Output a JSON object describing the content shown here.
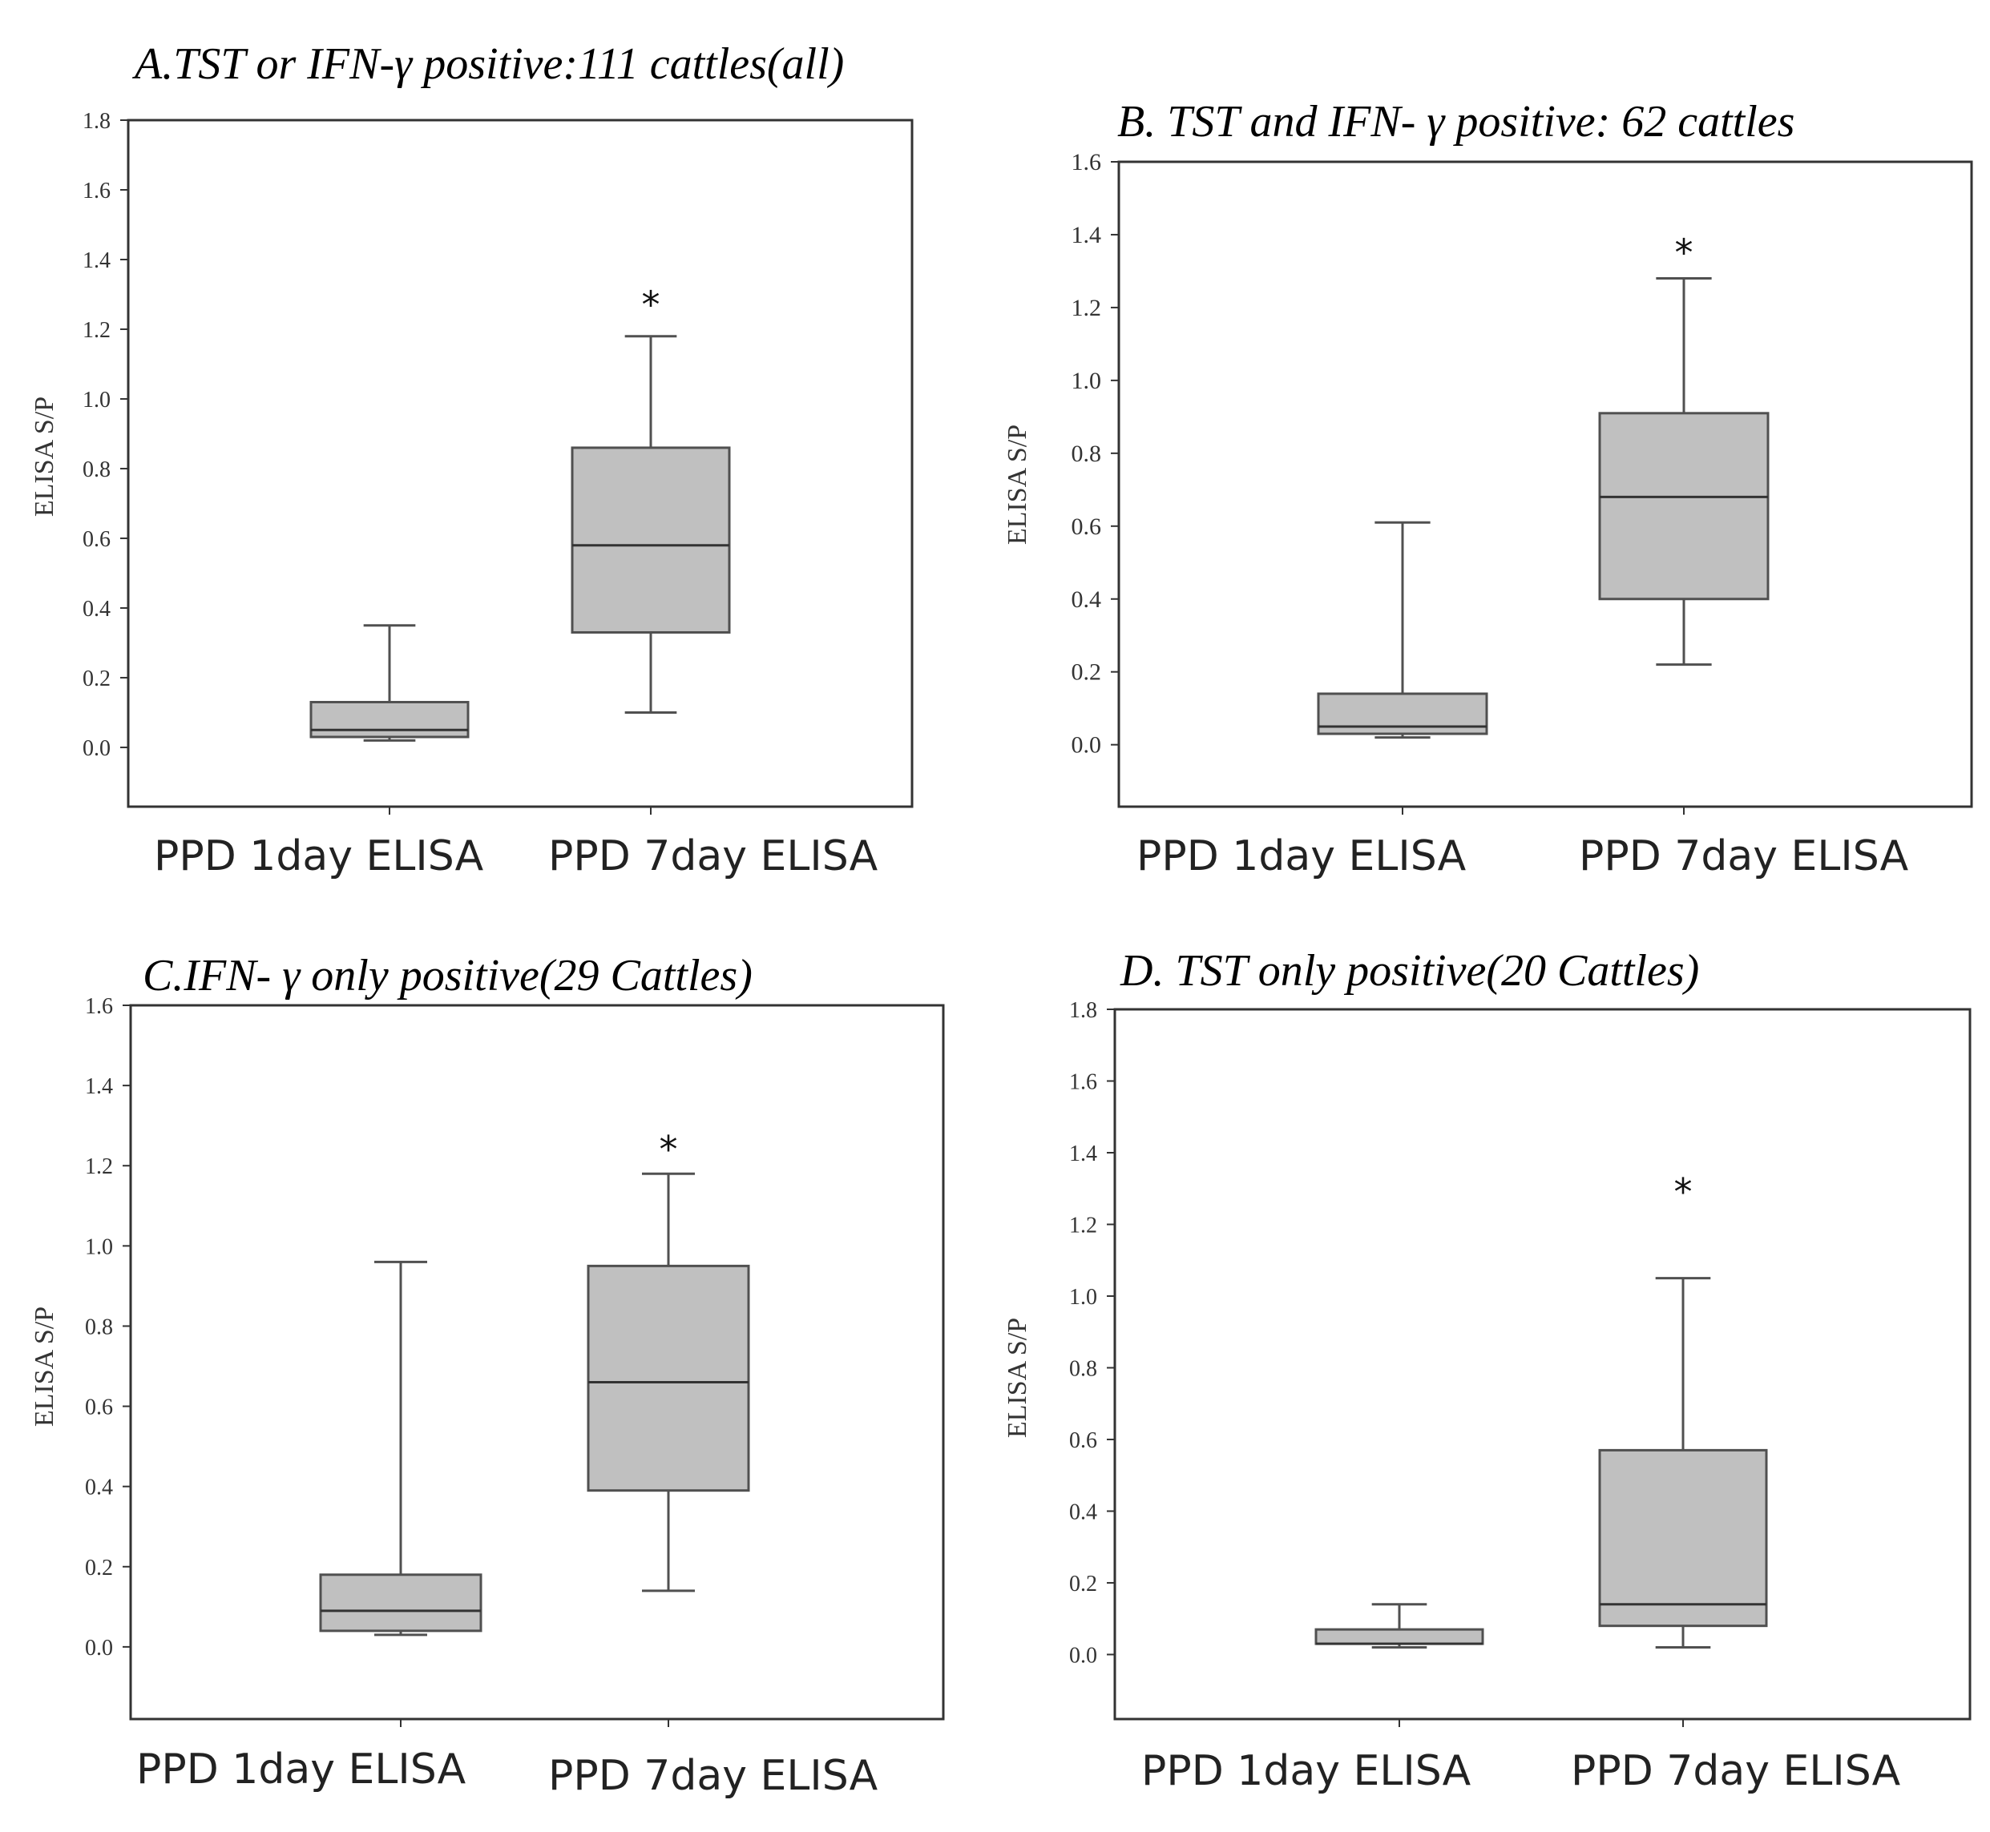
{
  "figure": {
    "panels": [
      {
        "title": "A.TST or IFN-γ positive:111 cattles(all)",
        "ylabel": "ELISA S/P",
        "categories": [
          "PPD 1day ELISA",
          "PPD 7day ELISA"
        ],
        "y_ticks": [
          "0.0",
          "0.2",
          "0.4",
          "0.6",
          "0.8",
          "1.0",
          "1.2",
          "1.4",
          "1.6",
          "1.8"
        ],
        "significance_marker": "*"
      },
      {
        "title": "B. TST and IFN- γ positive: 62 cattles",
        "ylabel": "ELISA S/P",
        "categories": [
          "PPD 1day ELISA",
          "PPD 7day ELISA"
        ],
        "y_ticks": [
          "0.0",
          "0.2",
          "0.4",
          "0.6",
          "0.8",
          "1.0",
          "1.2",
          "1.4",
          "1.6"
        ],
        "significance_marker": "*"
      },
      {
        "title": "C.IFN- γ  only positive(29 Cattles)",
        "ylabel": "ELISA S/P",
        "categories": [
          "PPD 1day ELISA",
          "PPD 7day ELISA"
        ],
        "y_ticks": [
          "0.0",
          "0.2",
          "0.4",
          "0.6",
          "0.8",
          "1.0",
          "1.2",
          "1.4",
          "1.6"
        ],
        "significance_marker": "*"
      },
      {
        "title": "D. TST only positive(20 Cattles)",
        "ylabel": "ELISA S/P",
        "categories": [
          "PPD 1day ELISA",
          "PPD 7day ELISA"
        ],
        "y_ticks": [
          "0.0",
          "0.2",
          "0.4",
          "0.6",
          "0.8",
          "1.0",
          "1.2",
          "1.4",
          "1.6",
          "1.8"
        ],
        "significance_marker": "*"
      }
    ]
  },
  "colors": {
    "box_fill": "#c0c0c0",
    "box_stroke": "#505050",
    "axis": "#333333"
  },
  "chart_data": [
    {
      "type": "box",
      "title": "A.TST or IFN-γ positive:111 cattles(all)",
      "ylabel": "ELISA S/P",
      "xlabel": "",
      "ylim": [
        -0.17,
        1.8
      ],
      "categories": [
        "PPD 1day ELISA",
        "PPD 7day ELISA"
      ],
      "boxes": [
        {
          "category": "PPD 1day ELISA",
          "min": 0.02,
          "q1": 0.03,
          "median": 0.05,
          "q3": 0.13,
          "max": 0.35
        },
        {
          "category": "PPD 7day ELISA",
          "min": 0.1,
          "q1": 0.33,
          "median": 0.58,
          "q3": 0.86,
          "max": 1.18
        }
      ],
      "annotations": [
        {
          "category": "PPD 7day ELISA",
          "text": "*",
          "y": 1.27
        }
      ]
    },
    {
      "type": "box",
      "title": "B. TST and IFN- γ positive: 62 cattles",
      "ylabel": "ELISA S/P",
      "xlabel": "",
      "ylim": [
        -0.17,
        1.6
      ],
      "categories": [
        "PPD 1day ELISA",
        "PPD 7day ELISA"
      ],
      "boxes": [
        {
          "category": "PPD 1day ELISA",
          "min": 0.02,
          "q1": 0.03,
          "median": 0.05,
          "q3": 0.14,
          "max": 0.61
        },
        {
          "category": "PPD 7day ELISA",
          "min": 0.22,
          "q1": 0.4,
          "median": 0.68,
          "q3": 0.91,
          "max": 1.28
        }
      ],
      "annotations": [
        {
          "category": "PPD 7day ELISA",
          "text": "*",
          "y": 1.35
        }
      ]
    },
    {
      "type": "box",
      "title": "C.IFN- γ  only positive(29 Cattles)",
      "ylabel": "ELISA S/P",
      "xlabel": "",
      "ylim": [
        -0.18,
        1.6
      ],
      "categories": [
        "PPD 1day ELISA",
        "PPD 7day ELISA"
      ],
      "boxes": [
        {
          "category": "PPD 1day ELISA",
          "min": 0.03,
          "q1": 0.04,
          "median": 0.09,
          "q3": 0.18,
          "max": 0.96
        },
        {
          "category": "PPD 7day ELISA",
          "min": 0.14,
          "q1": 0.39,
          "median": 0.66,
          "q3": 0.95,
          "max": 1.18
        }
      ],
      "annotations": [
        {
          "category": "PPD 7day ELISA",
          "text": "*",
          "y": 1.24
        }
      ]
    },
    {
      "type": "box",
      "title": "D. TST only positive(20 Cattles)",
      "ylabel": "ELISA S/P",
      "xlabel": "",
      "ylim": [
        -0.18,
        1.8
      ],
      "categories": [
        "PPD 1day ELISA",
        "PPD 7day ELISA"
      ],
      "boxes": [
        {
          "category": "PPD 1day ELISA",
          "min": 0.02,
          "q1": 0.03,
          "median": 0.03,
          "q3": 0.07,
          "max": 0.14
        },
        {
          "category": "PPD 7day ELISA",
          "min": 0.02,
          "q1": 0.08,
          "median": 0.14,
          "q3": 0.57,
          "max": 1.05
        }
      ],
      "annotations": [
        {
          "category": "PPD 7day ELISA",
          "text": "*",
          "y": 1.29
        }
      ]
    }
  ]
}
